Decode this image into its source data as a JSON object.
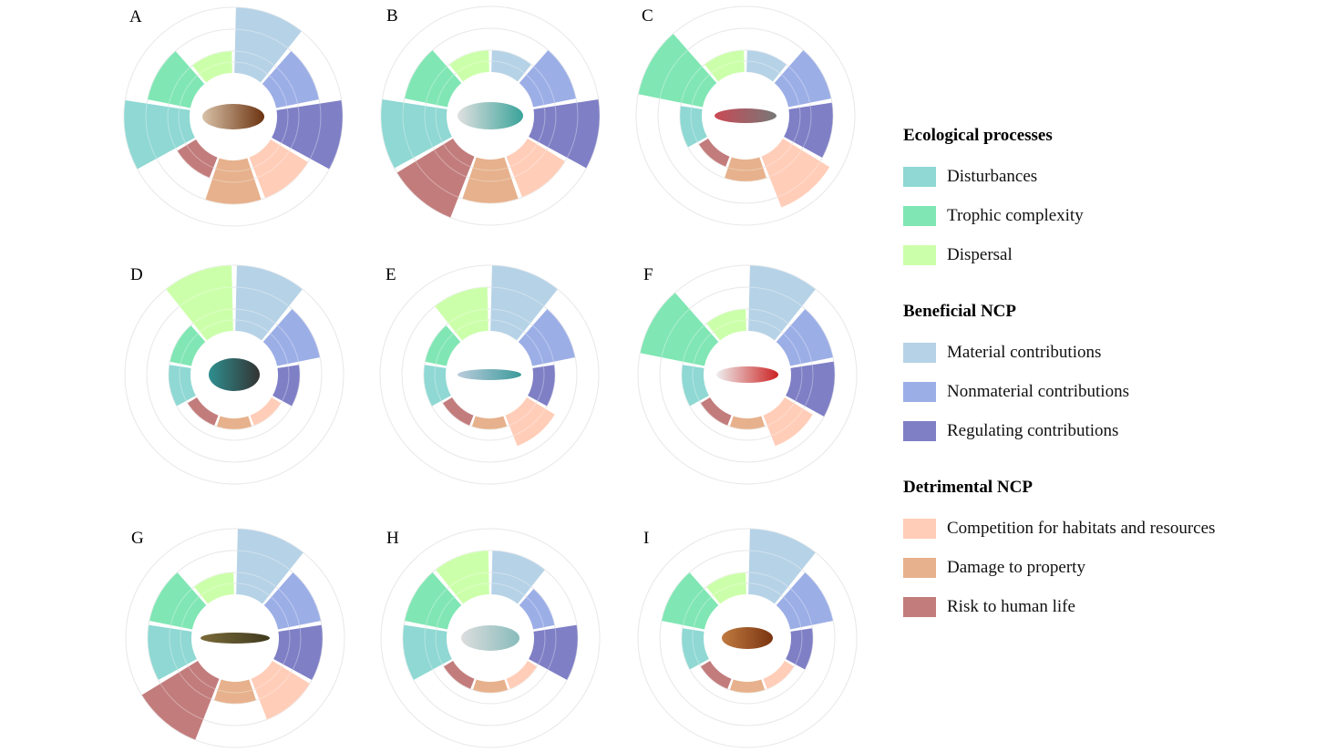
{
  "chart_data": {
    "type": "radial-bar",
    "grid": true,
    "grid_values": [
      0.5,
      1,
      2,
      3
    ],
    "rlim": [
      0,
      3
    ],
    "legend_position": "right",
    "categories": [
      "Material contributions",
      "Nonmaterial contributions",
      "Regulating contributions",
      "Competition for habitats and resources",
      "Damage to property",
      "Risk to human life",
      "Disturbances",
      "Trophic complexity",
      "Dispersal"
    ],
    "colors": {
      "Disturbances": "#8fd8d3",
      "Trophic complexity": "#80e6b4",
      "Dispersal": "#ccffaa",
      "Material contributions": "#b6d2e6",
      "Nonmaterial contributions": "#9caee6",
      "Regulating contributions": "#7f7fc6",
      "Competition for habitats and resources": "#ffcdb8",
      "Damage to property": "#e6b18c",
      "Risk to human life": "#c27c7c"
    },
    "panels": [
      {
        "label": "A",
        "icon": "beaver-icon",
        "values": [
          3,
          2,
          3,
          2,
          2,
          1,
          3,
          2,
          1
        ]
      },
      {
        "label": "B",
        "icon": "hippopotamus-icon",
        "values": [
          1,
          2,
          3,
          2,
          2,
          3,
          3,
          2,
          1
        ]
      },
      {
        "label": "C",
        "icon": "river-dolphin-icon",
        "values": [
          1,
          2,
          2,
          2.5,
          1,
          0.5,
          1,
          3,
          1
        ]
      },
      {
        "label": "D",
        "icon": "piranha-icon",
        "values": [
          3,
          2,
          1,
          0.5,
          0.5,
          0.5,
          1,
          1,
          3
        ]
      },
      {
        "label": "E",
        "icon": "sturgeon-icon",
        "values": [
          3,
          2,
          1,
          1.5,
          0.5,
          0.5,
          1,
          1,
          2
        ]
      },
      {
        "label": "F",
        "icon": "arapaima-icon",
        "values": [
          3,
          2,
          2,
          1.5,
          0.5,
          0.5,
          1,
          3,
          1
        ]
      },
      {
        "label": "G",
        "icon": "crocodile-icon",
        "values": [
          3,
          2,
          2,
          2,
          1,
          3,
          2,
          2,
          1
        ]
      },
      {
        "label": "H",
        "icon": "turtle-icon",
        "values": [
          2,
          1,
          2,
          0.5,
          0.5,
          0.5,
          2,
          2,
          2
        ]
      },
      {
        "label": "I",
        "icon": "salamander-icon",
        "values": [
          3,
          2,
          1,
          0.5,
          0.5,
          0.5,
          1,
          2,
          1
        ]
      }
    ]
  },
  "legend": {
    "groups": [
      {
        "title": "Ecological processes",
        "items": [
          "Disturbances",
          "Trophic complexity",
          "Dispersal"
        ]
      },
      {
        "title": "Beneficial NCP",
        "items": [
          "Material contributions",
          "Nonmaterial contributions",
          "Regulating contributions"
        ]
      },
      {
        "title": "Detrimental NCP",
        "items": [
          "Competition for habitats and resources",
          "Damage to property",
          "Risk to human life"
        ]
      }
    ]
  }
}
